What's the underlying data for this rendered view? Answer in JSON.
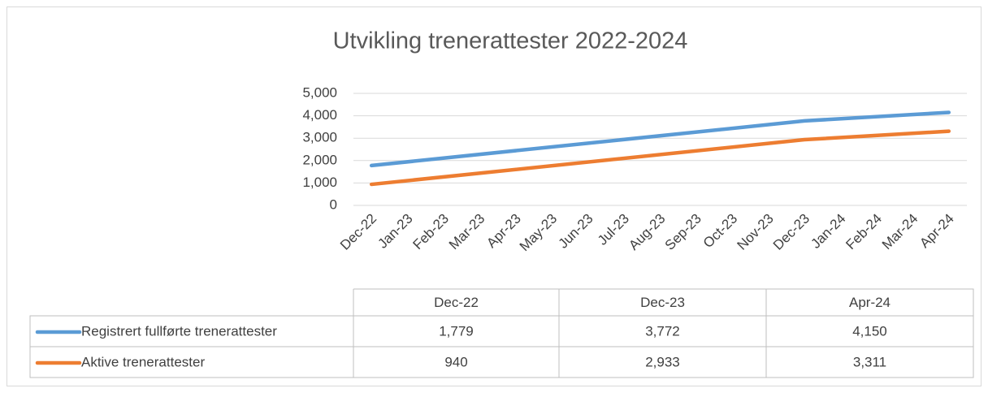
{
  "chart_data": {
    "type": "line",
    "title": "Utvikling trenerattester 2022-2024",
    "xticks": [
      "Dec-22",
      "Jan-23",
      "Feb-23",
      "Mar-23",
      "Apr-23",
      "May-23",
      "Jun-23",
      "Jul-23",
      "Aug-23",
      "Sep-23",
      "Oct-23",
      "Nov-23",
      "Dec-23",
      "Jan-24",
      "Feb-24",
      "Mar-24",
      "Apr-24"
    ],
    "x": [
      "Dec-22",
      "Dec-23",
      "Apr-24"
    ],
    "series": [
      {
        "name": "Registrert fullførte trenerattester",
        "color": "#5b9bd5",
        "values": [
          1779,
          3772,
          4150
        ],
        "value_labels": [
          "1,779",
          "3,772",
          "4,150"
        ]
      },
      {
        "name": "Aktive trenerattester",
        "color": "#ed7d31",
        "values": [
          940,
          2933,
          3311
        ],
        "value_labels": [
          "940",
          "2,933",
          "3,311"
        ]
      }
    ],
    "ylim": [
      0,
      5000
    ],
    "yticks": [
      0,
      {
        "value": 1000,
        "label": "1,000"
      },
      {
        "value": 2000,
        "label": "2,000"
      },
      {
        "value": 3000,
        "label": "3,000"
      },
      {
        "value": 4000,
        "label": "4,000"
      },
      {
        "value": 5000,
        "label": "5,000"
      }
    ],
    "grid": true
  }
}
